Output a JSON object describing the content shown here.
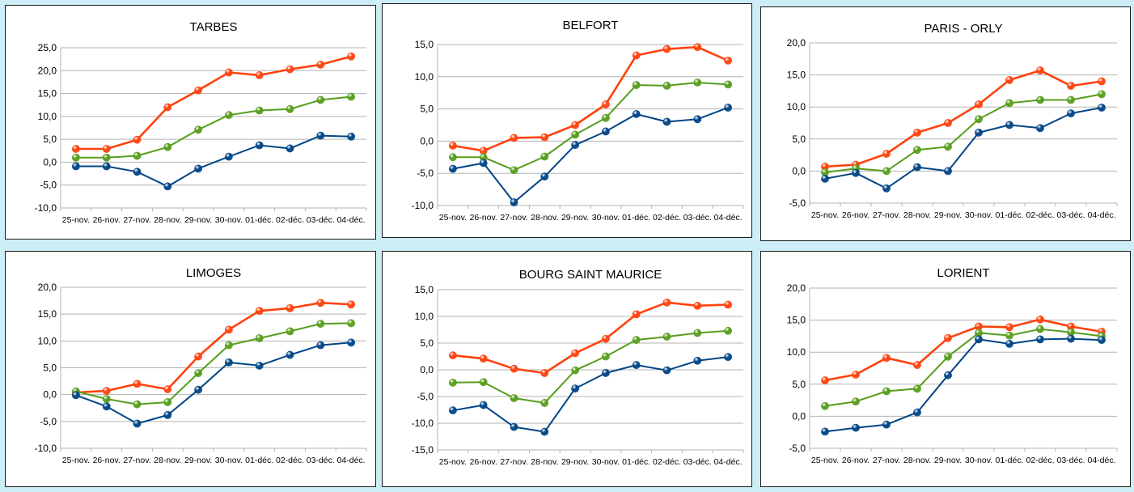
{
  "colors": {
    "max": "#ff420e",
    "mean": "#579d1c",
    "min": "#004586"
  },
  "chart_data": [
    {
      "type": "line",
      "title": "TARBES",
      "categories": [
        "25-nov.",
        "26-nov.",
        "27-nov.",
        "28-nov.",
        "29-nov.",
        "30-nov.",
        "01-déc.",
        "02-déc.",
        "03-déc.",
        "04-déc."
      ],
      "ylim": [
        -10,
        25
      ],
      "ystep": 5,
      "yticks": [
        "-10,0",
        "-5,0",
        "0,0",
        "5,0",
        "10,0",
        "15,0",
        "20,0",
        "25,0"
      ],
      "series": [
        {
          "key": "max",
          "values": [
            2.9,
            2.9,
            4.9,
            12.0,
            15.7,
            19.6,
            19.0,
            20.3,
            21.3,
            23.1
          ]
        },
        {
          "key": "mean",
          "values": [
            1.0,
            1.0,
            1.4,
            3.3,
            7.1,
            10.3,
            11.3,
            11.6,
            13.6,
            14.3
          ]
        },
        {
          "key": "min",
          "values": [
            -0.9,
            -0.9,
            -2.1,
            -5.3,
            -1.4,
            1.2,
            3.7,
            3.0,
            5.8,
            5.6
          ]
        }
      ]
    },
    {
      "type": "line",
      "title": "BELFORT",
      "categories": [
        "25-nov.",
        "26-nov.",
        "27-nov.",
        "28-nov.",
        "29-nov.",
        "30-nov.",
        "01-déc.",
        "02-déc.",
        "03-déc.",
        "04-déc."
      ],
      "ylim": [
        -10,
        15
      ],
      "ystep": 5,
      "yticks": [
        "-10,0",
        "-5,0",
        "0,0",
        "5,0",
        "10,0",
        "15,0"
      ],
      "series": [
        {
          "key": "max",
          "values": [
            -0.7,
            -1.5,
            0.5,
            0.6,
            2.5,
            5.7,
            13.3,
            14.3,
            14.6,
            12.5
          ]
        },
        {
          "key": "mean",
          "values": [
            -2.5,
            -2.5,
            -4.5,
            -2.4,
            1.0,
            3.6,
            8.7,
            8.6,
            9.1,
            8.8
          ]
        },
        {
          "key": "min",
          "values": [
            -4.3,
            -3.4,
            -9.5,
            -5.5,
            -0.6,
            1.5,
            4.2,
            3.0,
            3.4,
            5.2
          ]
        }
      ]
    },
    {
      "type": "line",
      "title": "PARIS - ORLY",
      "categories": [
        "25-nov.",
        "26-nov.",
        "27-nov.",
        "28-nov.",
        "29-nov.",
        "30-nov.",
        "01-déc.",
        "02-déc.",
        "03-déc.",
        "04-déc."
      ],
      "ylim": [
        -5,
        20
      ],
      "ystep": 5,
      "yticks": [
        "-5,0",
        "0,0",
        "5,0",
        "10,0",
        "15,0",
        "20,0"
      ],
      "series": [
        {
          "key": "max",
          "values": [
            0.7,
            1.0,
            2.7,
            6.0,
            7.5,
            10.4,
            14.2,
            15.7,
            13.3,
            14.0
          ]
        },
        {
          "key": "mean",
          "values": [
            -0.2,
            0.4,
            0.0,
            3.3,
            3.8,
            8.1,
            10.6,
            11.1,
            11.1,
            12.0
          ]
        },
        {
          "key": "min",
          "values": [
            -1.2,
            -0.3,
            -2.7,
            0.6,
            0.0,
            6.0,
            7.2,
            6.7,
            9.0,
            9.9
          ]
        }
      ]
    },
    {
      "type": "line",
      "title": "LIMOGES",
      "categories": [
        "25-nov.",
        "26-nov.",
        "27-nov.",
        "28-nov.",
        "29-nov.",
        "30-nov.",
        "01-déc.",
        "02-déc.",
        "03-déc.",
        "04-déc."
      ],
      "ylim": [
        -10,
        20
      ],
      "ystep": 5,
      "yticks": [
        "-10,0",
        "-5,0",
        "0,0",
        "5,0",
        "10,0",
        "15,0",
        "20,0"
      ],
      "series": [
        {
          "key": "max",
          "values": [
            0.4,
            0.7,
            2.0,
            1.0,
            7.1,
            12.1,
            15.6,
            16.1,
            17.1,
            16.8
          ]
        },
        {
          "key": "mean",
          "values": [
            0.6,
            -0.8,
            -1.8,
            -1.4,
            4.0,
            9.2,
            10.5,
            11.8,
            13.2,
            13.3
          ]
        },
        {
          "key": "min",
          "values": [
            -0.1,
            -2.2,
            -5.4,
            -3.8,
            0.9,
            6.0,
            5.4,
            7.4,
            9.2,
            9.7
          ]
        }
      ]
    },
    {
      "type": "line",
      "title": "BOURG SAINT MAURICE",
      "categories": [
        "25-nov.",
        "26-nov.",
        "27-nov.",
        "28-nov.",
        "29-nov.",
        "30-nov.",
        "01-déc.",
        "02-déc.",
        "03-déc.",
        "04-déc."
      ],
      "ylim": [
        -15,
        15
      ],
      "ystep": 5,
      "yticks": [
        "-15,0",
        "-10,0",
        "-5,0",
        "0,0",
        "5,0",
        "10,0",
        "15,0"
      ],
      "series": [
        {
          "key": "max",
          "values": [
            2.7,
            2.1,
            0.2,
            -0.6,
            3.1,
            5.8,
            10.4,
            12.6,
            12.0,
            12.2
          ]
        },
        {
          "key": "mean",
          "values": [
            -2.4,
            -2.3,
            -5.3,
            -6.2,
            -0.1,
            2.5,
            5.6,
            6.2,
            6.9,
            7.3
          ]
        },
        {
          "key": "min",
          "values": [
            -7.6,
            -6.6,
            -10.7,
            -11.6,
            -3.5,
            -0.6,
            0.9,
            -0.1,
            1.7,
            2.4
          ]
        }
      ]
    },
    {
      "type": "line",
      "title": "LORIENT",
      "categories": [
        "25-nov.",
        "26-nov.",
        "27-nov.",
        "28-nov.",
        "29-nov.",
        "30-nov.",
        "01-déc.",
        "02-déc.",
        "03-déc.",
        "04-déc."
      ],
      "ylim": [
        -5,
        20
      ],
      "ystep": 5,
      "yticks": [
        "-5,0",
        "0,0",
        "5,0",
        "10,0",
        "15,0",
        "20,0"
      ],
      "series": [
        {
          "key": "max",
          "values": [
            5.6,
            6.5,
            9.1,
            8.0,
            12.2,
            14.0,
            13.9,
            15.1,
            14.0,
            13.2
          ]
        },
        {
          "key": "mean",
          "values": [
            1.6,
            2.3,
            3.9,
            4.3,
            9.3,
            13.0,
            12.6,
            13.6,
            13.1,
            12.5
          ]
        },
        {
          "key": "min",
          "values": [
            -2.4,
            -1.8,
            -1.3,
            0.6,
            6.4,
            12.0,
            11.3,
            12.0,
            12.1,
            11.9
          ]
        }
      ]
    }
  ]
}
